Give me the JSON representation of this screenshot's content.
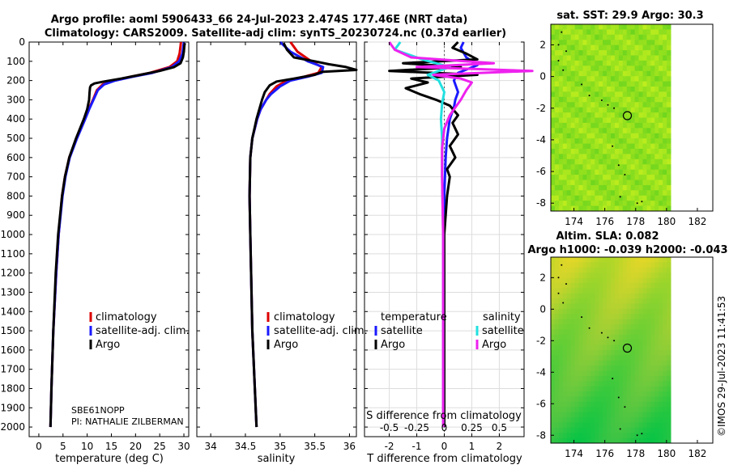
{
  "title_line1": "Argo profile: aoml 5906433_66 24-Jul-2023 2.474S 177.46E (NRT data)",
  "title_line2": "Climatology: CARS2009. Satellite-adj clim: synTS_20230724.nc (0.37d earlier)",
  "right_top_title": "sat. SST: 29.9 Argo: 30.3",
  "right_bottom_title1": "Altim. SLA: 0.082",
  "right_bottom_title2": "Argo h1000: -0.039 h2000: -0.043",
  "watermark": "©IMOS 29-Jul-2023 11:41:53",
  "instrument_line1": "SBE61NOPP",
  "instrument_line2": "PI: NATHALIE ZILBERMAN",
  "colors": {
    "climatology": "#dd0000",
    "satellite_adj": "#1a1aff",
    "argo": "#000000",
    "temp_sat": "#1a1aff",
    "temp_argo": "#000000",
    "sal_sat": "#22e0e0",
    "sal_argo": "#ee22ee"
  },
  "chart_data": [
    {
      "type": "line",
      "title": "",
      "xlabel": "temperature (deg C)",
      "ylabel": "",
      "xlim": [
        -2,
        31
      ],
      "ylim": [
        2050,
        0
      ],
      "xticks": [
        0,
        5,
        10,
        15,
        20,
        25,
        30
      ],
      "yticks": [
        0,
        100,
        200,
        300,
        400,
        500,
        600,
        700,
        800,
        900,
        1000,
        1100,
        1200,
        1300,
        1400,
        1500,
        1600,
        1700,
        1800,
        1900,
        2000
      ],
      "legend": [
        "climatology",
        "satellite-adj. clim.",
        "Argo"
      ],
      "series": [
        {
          "name": "climatology",
          "depth": [
            0,
            20,
            60,
            100,
            130,
            160,
            180,
            200,
            220,
            250,
            300,
            350,
            400,
            500,
            600,
            700,
            800,
            1000,
            1200,
            1500,
            1800,
            2000
          ],
          "values": [
            29.4,
            29.3,
            29.1,
            28.6,
            27.0,
            23.0,
            19.0,
            15.5,
            13.2,
            12.0,
            11.2,
            10.3,
            9.5,
            7.8,
            6.3,
            5.4,
            4.8,
            4.1,
            3.6,
            3.0,
            2.6,
            2.4
          ]
        },
        {
          "name": "satellite-adj. clim.",
          "depth": [
            0,
            20,
            60,
            100,
            130,
            160,
            180,
            200,
            220,
            250,
            300,
            350,
            400,
            500,
            600,
            700,
            800,
            1000,
            1200,
            1500,
            1800,
            2000
          ],
          "values": [
            30.0,
            29.9,
            29.7,
            29.0,
            27.5,
            23.5,
            19.5,
            15.8,
            13.5,
            12.2,
            11.3,
            10.4,
            9.6,
            7.9,
            6.4,
            5.5,
            4.9,
            4.1,
            3.6,
            3.0,
            2.6,
            2.4
          ]
        },
        {
          "name": "Argo",
          "depth": [
            5,
            20,
            50,
            80,
            110,
            130,
            150,
            170,
            190,
            205,
            215,
            225,
            235,
            260,
            300,
            350,
            400,
            500,
            600,
            700,
            800,
            1000,
            1200,
            1500,
            1800,
            2000
          ],
          "values": [
            30.2,
            30.1,
            30.0,
            29.8,
            29.3,
            28.0,
            25.0,
            21.0,
            17.0,
            13.5,
            11.5,
            10.8,
            10.6,
            10.5,
            10.4,
            10.0,
            9.3,
            7.7,
            6.3,
            5.4,
            4.8,
            4.0,
            3.5,
            3.0,
            2.6,
            2.4
          ]
        }
      ]
    },
    {
      "type": "line",
      "title": "",
      "xlabel": "salinity",
      "ylabel": "",
      "xlim": [
        33.8,
        36.1
      ],
      "ylim": [
        2050,
        0
      ],
      "xticks": [
        34,
        34.5,
        35,
        35.5,
        36
      ],
      "legend": [
        "climatology",
        "satellite-adj. clim.",
        "Argo"
      ],
      "series": [
        {
          "name": "climatology",
          "depth": [
            0,
            50,
            100,
            130,
            160,
            180,
            200,
            230,
            270,
            300,
            350,
            400,
            500,
            600,
            800,
            1000,
            1500,
            2000
          ],
          "values": [
            35.15,
            35.25,
            35.45,
            35.6,
            35.55,
            35.35,
            35.1,
            34.95,
            34.85,
            34.8,
            34.72,
            34.67,
            34.6,
            34.57,
            34.56,
            34.57,
            34.6,
            34.66
          ]
        },
        {
          "name": "satellite-adj. clim.",
          "depth": [
            0,
            50,
            100,
            130,
            160,
            180,
            200,
            230,
            270,
            300,
            350,
            400,
            500,
            600,
            800,
            1000,
            1500,
            2000
          ],
          "values": [
            35.0,
            35.15,
            35.4,
            35.62,
            35.6,
            35.4,
            35.15,
            35.0,
            34.87,
            34.8,
            34.72,
            34.67,
            34.6,
            34.57,
            34.56,
            34.57,
            34.6,
            34.66
          ]
        },
        {
          "name": "Argo",
          "depth": [
            5,
            40,
            80,
            100,
            115,
            130,
            145,
            155,
            170,
            190,
            205,
            225,
            260,
            300,
            350,
            400,
            500,
            600,
            800,
            1000,
            1500,
            2000
          ],
          "values": [
            35.05,
            35.1,
            35.2,
            35.5,
            35.7,
            35.95,
            36.1,
            35.6,
            35.5,
            35.2,
            34.95,
            34.85,
            34.78,
            34.74,
            34.7,
            34.66,
            34.6,
            34.57,
            34.56,
            34.57,
            34.6,
            34.66
          ]
        }
      ]
    },
    {
      "type": "line",
      "title": "",
      "xlabel": "T difference from climatology",
      "xlabel_top": "S difference from climatology",
      "ylabel": "",
      "xlim": [
        -2.9,
        2.9
      ],
      "ylim": [
        2050,
        0
      ],
      "xticks": [
        -2,
        -1,
        0,
        1,
        2
      ],
      "xticks_top": [
        -0.5,
        -0.25,
        0,
        0.25,
        0.5
      ],
      "legend_temperature_heading": "temperature",
      "legend_salinity_heading": "salinity",
      "legend_temperature": [
        "satellite",
        "Argo"
      ],
      "legend_salinity": [
        "satellite",
        "Argo"
      ],
      "series": [
        {
          "name": "temperature satellite",
          "depth": [
            0,
            30,
            80,
            120,
            160,
            200,
            260,
            300,
            340,
            400,
            500,
            600,
            800,
            1000,
            1500,
            2000
          ],
          "values": [
            0.7,
            0.6,
            0.8,
            1.2,
            0.5,
            0.35,
            0.5,
            0.4,
            0.35,
            0.2,
            0.1,
            0.05,
            0.0,
            0.0,
            0.0,
            0.0
          ]
        },
        {
          "name": "temperature Argo",
          "depth": [
            0,
            30,
            60,
            90,
            110,
            130,
            150,
            170,
            190,
            210,
            240,
            270,
            300,
            330,
            380,
            420,
            480,
            540,
            600,
            660,
            700,
            800,
            1000,
            1500,
            2000
          ],
          "values": [
            0.5,
            0.3,
            0.8,
            1.2,
            -1.5,
            0.6,
            -2.0,
            1.2,
            -1.2,
            -0.6,
            -1.4,
            -0.9,
            -0.3,
            0.2,
            0.5,
            0.3,
            0.5,
            0.2,
            0.4,
            0.1,
            0.2,
            0.1,
            0.0,
            0.0,
            0.0
          ]
        },
        {
          "name": "salinity satellite",
          "depth": [
            0,
            40,
            90,
            130,
            170,
            200,
            260,
            320,
            400,
            500,
            700,
            1000,
            1500,
            2000
          ],
          "values": [
            -0.4,
            -0.45,
            -0.2,
            0.05,
            -0.15,
            -0.05,
            0.0,
            -0.02,
            -0.03,
            -0.02,
            -0.02,
            -0.01,
            -0.01,
            -0.01
          ]
        },
        {
          "name": "salinity Argo",
          "depth": [
            0,
            40,
            80,
            110,
            130,
            150,
            170,
            190,
            210,
            250,
            300,
            340,
            380,
            450,
            550,
            700,
            1000,
            1500,
            2000
          ],
          "values": [
            -0.5,
            -0.45,
            -0.3,
            0.45,
            -0.25,
            0.8,
            -0.1,
            0.15,
            0.25,
            0.2,
            0.15,
            0.1,
            0.05,
            0.0,
            -0.02,
            -0.02,
            -0.01,
            -0.01,
            -0.01
          ]
        }
      ]
    },
    {
      "type": "heatmap",
      "title": "sat. SST: 29.9 Argo: 30.3",
      "xlim": [
        172.5,
        183
      ],
      "ylim": [
        -8.5,
        3.3
      ],
      "xticks": [
        174,
        176,
        178,
        180,
        182
      ],
      "yticks": [
        2,
        0,
        -2,
        -4,
        -6,
        -8
      ],
      "argo_lon": 177.46,
      "argo_lat": -2.474
    },
    {
      "type": "heatmap",
      "title": "Altim. SLA: 0.082",
      "xlim": [
        172.5,
        183
      ],
      "ylim": [
        -8.5,
        3.3
      ],
      "xticks": [
        174,
        176,
        178,
        180,
        182
      ],
      "yticks": [
        2,
        0,
        -2,
        -4,
        -6,
        -8
      ],
      "argo_lon": 177.46,
      "argo_lat": -2.474
    }
  ]
}
